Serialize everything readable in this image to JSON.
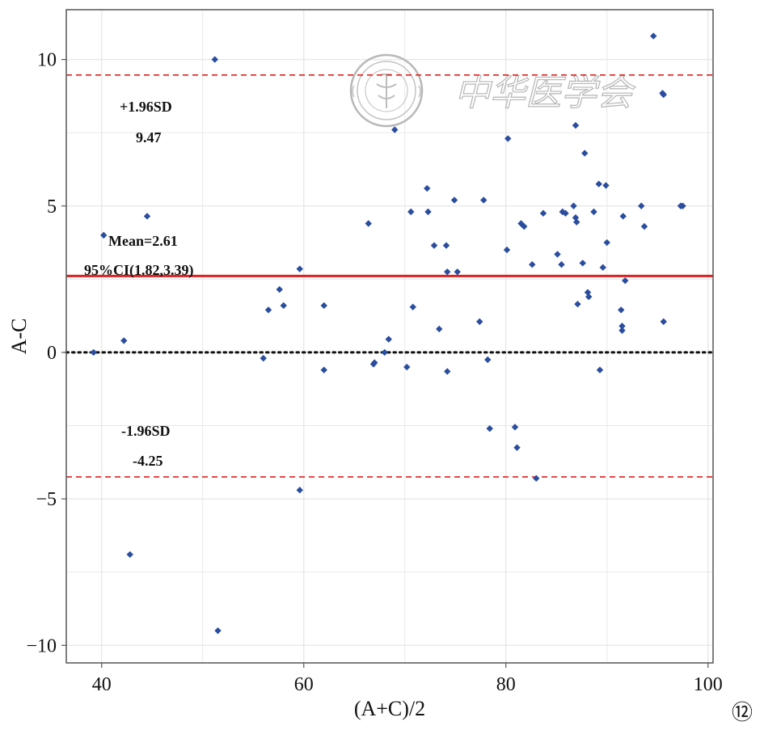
{
  "chart_data": {
    "type": "scatter",
    "title": "",
    "xlabel": "(A+C)/2",
    "ylabel": "A-C",
    "xlim": [
      36.5,
      100.5
    ],
    "ylim": [
      -10.6,
      11.7
    ],
    "xticks": [
      40,
      60,
      80,
      100
    ],
    "yticks": [
      -10,
      -5,
      0,
      5,
      10
    ],
    "xtick_labels": [
      "40",
      "60",
      "80",
      "100"
    ],
    "ytick_labels": [
      "−10",
      "−5",
      "0",
      "5",
      "10"
    ],
    "grid": true,
    "legend": "none",
    "colors": {
      "points": "#2a4d9e",
      "mean_line": "#e21e1e",
      "limit_lines": "#e21e1e",
      "zero_line": "#111111",
      "grid": "#e6e6e6"
    },
    "reference_lines": [
      {
        "name": "upper_limit",
        "y": 9.47,
        "style": "dashed"
      },
      {
        "name": "mean",
        "y": 2.61,
        "style": "solid"
      },
      {
        "name": "zero",
        "y": 0,
        "style": "dotted"
      },
      {
        "name": "lower_limit",
        "y": -4.25,
        "style": "dashed"
      }
    ],
    "annotations": {
      "upper_label": "+1.96SD",
      "upper_value": "9.47",
      "mean_label": "Mean=2.61",
      "ci_label": "95%CI(1.82,3.39)",
      "lower_label": "-1.96SD",
      "lower_value": "-4.25"
    },
    "points": [
      {
        "x": 39.2,
        "y": 0.0
      },
      {
        "x": 40.2,
        "y": 4.0
      },
      {
        "x": 42.2,
        "y": 0.4
      },
      {
        "x": 42.8,
        "y": -6.9
      },
      {
        "x": 44.5,
        "y": 4.65
      },
      {
        "x": 51.2,
        "y": 10.0
      },
      {
        "x": 51.5,
        "y": -9.5
      },
      {
        "x": 56.0,
        "y": -0.2
      },
      {
        "x": 56.5,
        "y": 1.45
      },
      {
        "x": 57.6,
        "y": 2.15
      },
      {
        "x": 58.0,
        "y": 1.6
      },
      {
        "x": 59.6,
        "y": 2.85
      },
      {
        "x": 59.6,
        "y": -4.7
      },
      {
        "x": 62.0,
        "y": 1.6
      },
      {
        "x": 62.0,
        "y": -0.6
      },
      {
        "x": 66.4,
        "y": 4.4
      },
      {
        "x": 66.9,
        "y": -0.4
      },
      {
        "x": 67.0,
        "y": -0.35
      },
      {
        "x": 68.0,
        "y": 0.0
      },
      {
        "x": 68.4,
        "y": 0.45
      },
      {
        "x": 69.0,
        "y": 7.6
      },
      {
        "x": 70.2,
        "y": -0.5
      },
      {
        "x": 70.6,
        "y": 4.8
      },
      {
        "x": 70.8,
        "y": 1.55
      },
      {
        "x": 72.2,
        "y": 5.6
      },
      {
        "x": 72.3,
        "y": 4.8
      },
      {
        "x": 72.9,
        "y": 3.65
      },
      {
        "x": 73.4,
        "y": 0.8
      },
      {
        "x": 74.1,
        "y": 3.65
      },
      {
        "x": 74.2,
        "y": 2.75
      },
      {
        "x": 74.2,
        "y": -0.65
      },
      {
        "x": 74.9,
        "y": 5.2
      },
      {
        "x": 75.2,
        "y": 2.75
      },
      {
        "x": 77.4,
        "y": 1.05
      },
      {
        "x": 77.8,
        "y": 5.2
      },
      {
        "x": 78.2,
        "y": -0.25
      },
      {
        "x": 78.4,
        "y": -2.6
      },
      {
        "x": 80.1,
        "y": 3.5
      },
      {
        "x": 80.2,
        "y": 7.3
      },
      {
        "x": 80.9,
        "y": -2.55
      },
      {
        "x": 81.1,
        "y": -3.25
      },
      {
        "x": 81.5,
        "y": 4.4
      },
      {
        "x": 81.8,
        "y": 4.3
      },
      {
        "x": 82.6,
        "y": 3.0
      },
      {
        "x": 83.0,
        "y": -4.3
      },
      {
        "x": 83.7,
        "y": 4.75
      },
      {
        "x": 85.1,
        "y": 3.35
      },
      {
        "x": 85.5,
        "y": 3.0
      },
      {
        "x": 85.6,
        "y": 4.8
      },
      {
        "x": 85.9,
        "y": 4.75
      },
      {
        "x": 86.7,
        "y": 5.0
      },
      {
        "x": 86.9,
        "y": 7.75
      },
      {
        "x": 86.9,
        "y": 4.6
      },
      {
        "x": 87.0,
        "y": 4.45
      },
      {
        "x": 87.1,
        "y": 1.65
      },
      {
        "x": 87.6,
        "y": 3.05
      },
      {
        "x": 87.8,
        "y": 6.8
      },
      {
        "x": 88.1,
        "y": 2.05
      },
      {
        "x": 88.2,
        "y": 1.9
      },
      {
        "x": 88.7,
        "y": 4.8
      },
      {
        "x": 89.2,
        "y": 5.75
      },
      {
        "x": 89.3,
        "y": -0.6
      },
      {
        "x": 89.6,
        "y": 2.9
      },
      {
        "x": 89.9,
        "y": 5.7
      },
      {
        "x": 90.0,
        "y": 3.75
      },
      {
        "x": 91.4,
        "y": 1.45
      },
      {
        "x": 91.5,
        "y": 0.9
      },
      {
        "x": 91.5,
        "y": 0.75
      },
      {
        "x": 91.6,
        "y": 4.65
      },
      {
        "x": 91.8,
        "y": 2.45
      },
      {
        "x": 93.4,
        "y": 5.0
      },
      {
        "x": 93.7,
        "y": 4.3
      },
      {
        "x": 94.6,
        "y": 10.8
      },
      {
        "x": 95.5,
        "y": 8.85
      },
      {
        "x": 95.6,
        "y": 8.8
      },
      {
        "x": 95.6,
        "y": 1.05
      },
      {
        "x": 97.3,
        "y": 5.0
      },
      {
        "x": 97.5,
        "y": 5.0
      }
    ]
  },
  "watermark": {
    "text": "中华医学会",
    "emblem_icon": "chinese-medical-association-seal-icon"
  },
  "panel_label": "⑫"
}
